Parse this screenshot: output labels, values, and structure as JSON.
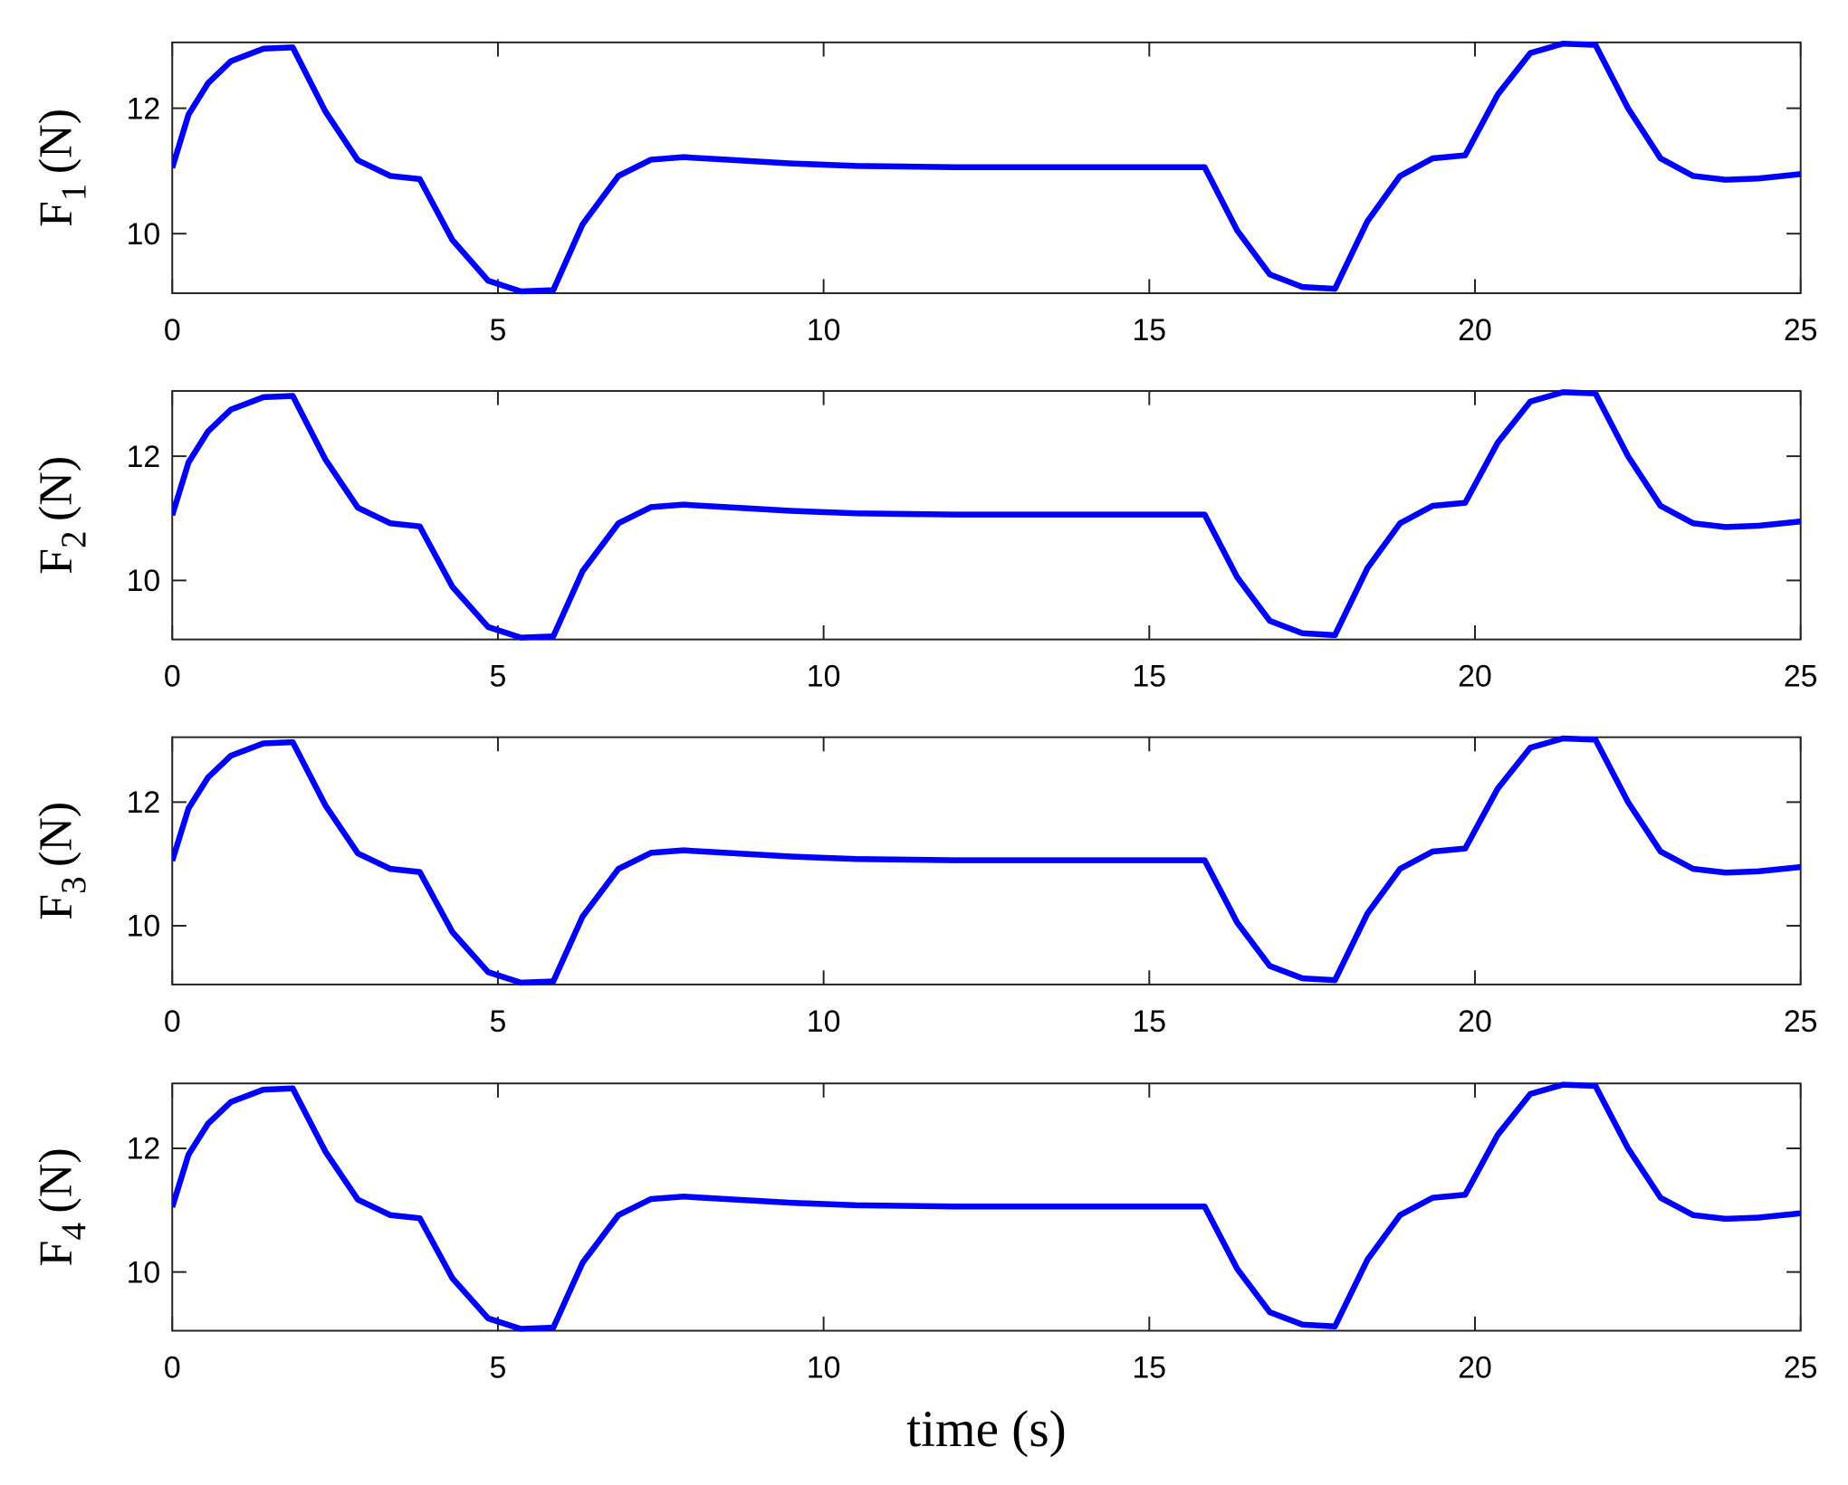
{
  "chart_data": [
    {
      "type": "line",
      "ylabel": {
        "base": "F",
        "subscript": "1",
        "unit": "(N)"
      },
      "x": [
        0,
        0.25,
        0.55,
        0.9,
        1.4,
        1.85,
        2.35,
        2.85,
        3.35,
        3.8,
        4.3,
        4.85,
        5.35,
        5.85,
        6.3,
        6.85,
        7.35,
        7.85,
        8.5,
        9.5,
        10.5,
        12,
        15.85,
        16.35,
        16.85,
        17.35,
        17.85,
        18.35,
        18.85,
        19.35,
        19.85,
        20.35,
        20.85,
        21.35,
        21.85,
        22.35,
        22.85,
        23.35,
        23.85,
        24.35,
        25
      ],
      "values": [
        11.05,
        11.9,
        12.4,
        12.75,
        12.95,
        12.97,
        11.95,
        11.17,
        10.92,
        10.87,
        9.9,
        9.25,
        9.08,
        9.1,
        10.15,
        10.92,
        11.18,
        11.22,
        11.18,
        11.12,
        11.08,
        11.06,
        11.06,
        10.05,
        9.35,
        9.15,
        9.12,
        10.2,
        10.92,
        11.2,
        11.25,
        12.22,
        12.88,
        13.03,
        13.01,
        12.0,
        11.2,
        10.92,
        10.86,
        10.88,
        10.95
      ],
      "color": "#0000ff",
      "xlim": [
        0,
        25
      ],
      "xticks": [
        0,
        5,
        10,
        15,
        20,
        25
      ],
      "ylim": [
        9.05,
        13.05
      ],
      "yticks": [
        10,
        12
      ],
      "grid": false
    },
    {
      "type": "line",
      "ylabel": {
        "base": "F",
        "subscript": "2",
        "unit": "(N)"
      },
      "x": [
        0,
        0.25,
        0.55,
        0.9,
        1.4,
        1.85,
        2.35,
        2.85,
        3.35,
        3.8,
        4.3,
        4.85,
        5.35,
        5.85,
        6.3,
        6.85,
        7.35,
        7.85,
        8.5,
        9.5,
        10.5,
        12,
        15.85,
        16.35,
        16.85,
        17.35,
        17.85,
        18.35,
        18.85,
        19.35,
        19.85,
        20.35,
        20.85,
        21.35,
        21.85,
        22.35,
        22.85,
        23.35,
        23.85,
        24.35,
        25
      ],
      "values": [
        11.05,
        11.9,
        12.4,
        12.75,
        12.95,
        12.97,
        11.95,
        11.17,
        10.92,
        10.87,
        9.9,
        9.25,
        9.08,
        9.1,
        10.15,
        10.92,
        11.18,
        11.22,
        11.18,
        11.12,
        11.08,
        11.06,
        11.06,
        10.05,
        9.35,
        9.15,
        9.12,
        10.2,
        10.92,
        11.2,
        11.25,
        12.22,
        12.88,
        13.03,
        13.01,
        12.0,
        11.2,
        10.92,
        10.86,
        10.88,
        10.95
      ],
      "color": "#0000ff",
      "xlim": [
        0,
        25
      ],
      "xticks": [
        0,
        5,
        10,
        15,
        20,
        25
      ],
      "ylim": [
        9.05,
        13.05
      ],
      "yticks": [
        10,
        12
      ],
      "grid": false
    },
    {
      "type": "line",
      "ylabel": {
        "base": "F",
        "subscript": "3",
        "unit": "(N)"
      },
      "x": [
        0,
        0.25,
        0.55,
        0.9,
        1.4,
        1.85,
        2.35,
        2.85,
        3.35,
        3.8,
        4.3,
        4.85,
        5.35,
        5.85,
        6.3,
        6.85,
        7.35,
        7.85,
        8.5,
        9.5,
        10.5,
        12,
        15.85,
        16.35,
        16.85,
        17.35,
        17.85,
        18.35,
        18.85,
        19.35,
        19.85,
        20.35,
        20.85,
        21.35,
        21.85,
        22.35,
        22.85,
        23.35,
        23.85,
        24.35,
        25
      ],
      "values": [
        11.05,
        11.9,
        12.4,
        12.75,
        12.95,
        12.97,
        11.95,
        11.17,
        10.92,
        10.87,
        9.9,
        9.25,
        9.08,
        9.1,
        10.15,
        10.92,
        11.18,
        11.22,
        11.18,
        11.12,
        11.08,
        11.06,
        11.06,
        10.05,
        9.35,
        9.15,
        9.12,
        10.2,
        10.92,
        11.2,
        11.25,
        12.22,
        12.88,
        13.03,
        13.01,
        12.0,
        11.2,
        10.92,
        10.86,
        10.88,
        10.95
      ],
      "color": "#0000ff",
      "xlim": [
        0,
        25
      ],
      "xticks": [
        0,
        5,
        10,
        15,
        20,
        25
      ],
      "ylim": [
        9.05,
        13.05
      ],
      "yticks": [
        10,
        12
      ],
      "grid": false
    },
    {
      "type": "line",
      "ylabel": {
        "base": "F",
        "subscript": "4",
        "unit": "(N)"
      },
      "xlabel": "time (s)",
      "x": [
        0,
        0.25,
        0.55,
        0.9,
        1.4,
        1.85,
        2.35,
        2.85,
        3.35,
        3.8,
        4.3,
        4.85,
        5.35,
        5.85,
        6.3,
        6.85,
        7.35,
        7.85,
        8.5,
        9.5,
        10.5,
        12,
        15.85,
        16.35,
        16.85,
        17.35,
        17.85,
        18.35,
        18.85,
        19.35,
        19.85,
        20.35,
        20.85,
        21.35,
        21.85,
        22.35,
        22.85,
        23.35,
        23.85,
        24.35,
        25
      ],
      "values": [
        11.05,
        11.9,
        12.4,
        12.75,
        12.95,
        12.97,
        11.95,
        11.17,
        10.92,
        10.87,
        9.9,
        9.25,
        9.08,
        9.1,
        10.15,
        10.92,
        11.18,
        11.22,
        11.18,
        11.12,
        11.08,
        11.06,
        11.06,
        10.05,
        9.35,
        9.15,
        9.12,
        10.2,
        10.92,
        11.2,
        11.25,
        12.22,
        12.88,
        13.03,
        13.01,
        12.0,
        11.2,
        10.92,
        10.86,
        10.88,
        10.95
      ],
      "color": "#0000ff",
      "xlim": [
        0,
        25
      ],
      "xticks": [
        0,
        5,
        10,
        15,
        20,
        25
      ],
      "ylim": [
        9.05,
        13.05
      ],
      "yticks": [
        10,
        12
      ],
      "grid": false
    }
  ]
}
